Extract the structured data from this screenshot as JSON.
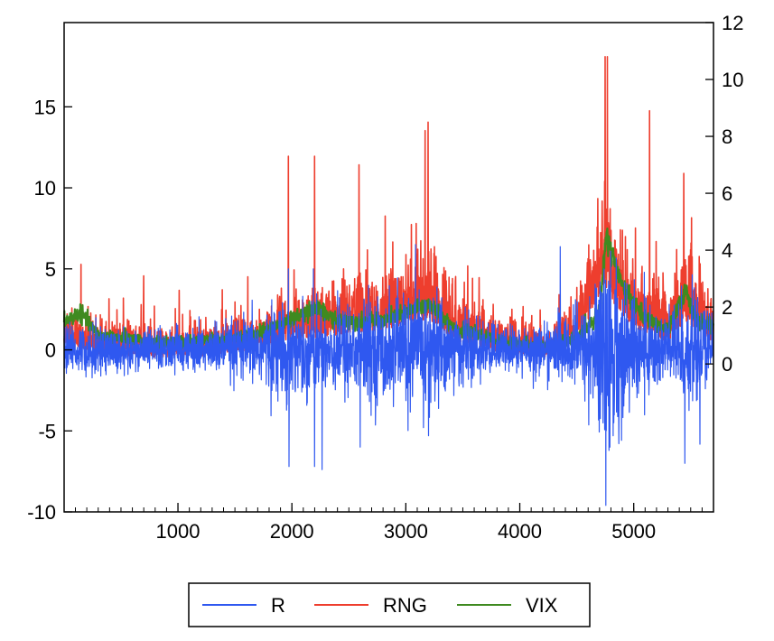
{
  "chart_data": {
    "type": "line",
    "title": "",
    "x": {
      "range": [
        1,
        5700
      ],
      "ticks": [
        1000,
        2000,
        3000,
        4000,
        5000
      ],
      "tick_labels": [
        "1000",
        "2000",
        "3000",
        "4000",
        "5000"
      ],
      "minor_tick_step": 100
    },
    "y_left": {
      "range": [
        -10,
        20.2
      ],
      "ticks": [
        -10,
        -5,
        0,
        5,
        10,
        15
      ],
      "tick_labels": [
        "-10",
        "-5",
        "0",
        "5",
        "10",
        "15"
      ]
    },
    "y_right": {
      "range": [
        -5.2,
        12
      ],
      "ticks": [
        0,
        2,
        4,
        6,
        8,
        10,
        12
      ],
      "tick_labels": [
        "0",
        "2",
        "4",
        "6",
        "8",
        "10",
        "12"
      ]
    },
    "series": [
      {
        "name": "R",
        "axis": "left",
        "color": "#2f58f0",
        "description_volatility_regimes": [
          [
            1,
            0.9
          ],
          [
            300,
            1.0
          ],
          [
            700,
            0.8
          ],
          [
            1200,
            0.9
          ],
          [
            1600,
            1.2
          ],
          [
            1950,
            1.9
          ],
          [
            2250,
            1.6
          ],
          [
            2500,
            1.9
          ],
          [
            2800,
            2.1
          ],
          [
            3200,
            2.6
          ],
          [
            3450,
            1.5
          ],
          [
            3800,
            0.9
          ],
          [
            4300,
            1.1
          ],
          [
            4600,
            1.9
          ],
          [
            4780,
            4.6
          ],
          [
            4900,
            2.8
          ],
          [
            5100,
            1.9
          ],
          [
            5300,
            1.6
          ],
          [
            5450,
            2.3
          ],
          [
            5700,
            1.4
          ]
        ],
        "spikes": [
          [
            1970,
            5.0
          ],
          [
            1975,
            -7.2
          ],
          [
            2190,
            5.0
          ],
          [
            2200,
            -7.2
          ],
          [
            2600,
            -6.0
          ],
          [
            3200,
            -5.3
          ],
          [
            4740,
            5.0
          ],
          [
            4755,
            -9.6
          ],
          [
            4790,
            4.0
          ],
          [
            5450,
            -7.0
          ]
        ]
      },
      {
        "name": "RNG",
        "axis": "right",
        "color": "#ee3e2e",
        "baseline": [
          [
            1,
            0.8
          ],
          [
            300,
            0.45
          ],
          [
            800,
            0.35
          ],
          [
            1200,
            0.4
          ],
          [
            1600,
            0.55
          ],
          [
            1950,
            0.9
          ],
          [
            2200,
            1.0
          ],
          [
            2500,
            1.2
          ],
          [
            2800,
            1.3
          ],
          [
            3200,
            1.7
          ],
          [
            3450,
            0.9
          ],
          [
            3800,
            0.55
          ],
          [
            4250,
            0.35
          ],
          [
            4500,
            0.9
          ],
          [
            4750,
            2.8
          ],
          [
            4900,
            1.7
          ],
          [
            5100,
            1.2
          ],
          [
            5300,
            0.9
          ],
          [
            5450,
            1.6
          ],
          [
            5700,
            0.9
          ]
        ],
        "spikes": [
          [
            150,
            3.5
          ],
          [
            700,
            3.1
          ],
          [
            1970,
            7.3
          ],
          [
            2200,
            7.3
          ],
          [
            2590,
            7.0
          ],
          [
            2820,
            5.2
          ],
          [
            3050,
            4.9
          ],
          [
            3170,
            8.2
          ],
          [
            3195,
            8.5
          ],
          [
            4600,
            3.7
          ],
          [
            4750,
            10.8
          ],
          [
            4770,
            10.8
          ],
          [
            5140,
            8.9
          ],
          [
            5440,
            6.7
          ],
          [
            5680,
            2.3
          ]
        ]
      },
      {
        "name": "VIX",
        "axis": "right",
        "color": "#3f8a20",
        "baseline": [
          [
            1,
            1.5
          ],
          [
            150,
            1.8
          ],
          [
            300,
            1.0
          ],
          [
            800,
            0.75
          ],
          [
            1200,
            0.8
          ],
          [
            1600,
            0.95
          ],
          [
            1950,
            1.45
          ],
          [
            2200,
            2.0
          ],
          [
            2400,
            1.5
          ],
          [
            2800,
            1.5
          ],
          [
            3200,
            2.1
          ],
          [
            3450,
            1.2
          ],
          [
            3800,
            0.8
          ],
          [
            4250,
            0.6
          ],
          [
            4500,
            0.9
          ],
          [
            4700,
            1.8
          ],
          [
            4760,
            4.6
          ],
          [
            4900,
            2.7
          ],
          [
            5100,
            1.6
          ],
          [
            5300,
            1.2
          ],
          [
            5460,
            2.6
          ],
          [
            5550,
            1.5
          ],
          [
            5700,
            1.3
          ]
        ]
      }
    ],
    "legend": {
      "position": "bottom-center",
      "entries": [
        {
          "label": "R",
          "color": "#2f58f0"
        },
        {
          "label": "RNG",
          "color": "#ee3e2e"
        },
        {
          "label": "VIX",
          "color": "#3f8a20"
        }
      ]
    }
  }
}
